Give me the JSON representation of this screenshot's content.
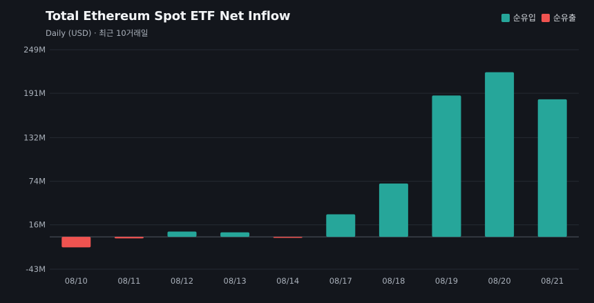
{
  "chart_data": {
    "type": "bar",
    "title": "Total Ethereum Spot ETF Net Inflow",
    "subtitle": "Daily (USD) · 최근 10거래일",
    "categories": [
      "08/10",
      "08/11",
      "08/12",
      "08/13",
      "08/14",
      "08/17",
      "08/18",
      "08/19",
      "08/20",
      "08/21"
    ],
    "values": [
      -14,
      -2,
      7,
      6,
      -1,
      30,
      71,
      188,
      219,
      183
    ],
    "value_unit": "M USD",
    "ylim": [
      -43,
      249
    ],
    "yticks": [
      249,
      191,
      132,
      74,
      16,
      -43
    ],
    "ytick_labels": [
      "249M",
      "191M",
      "132M",
      "74M",
      "16M",
      "-43M"
    ],
    "legend": [
      {
        "label": "순유입",
        "color": "#26a69a"
      },
      {
        "label": "순유출",
        "color": "#ef5350"
      }
    ],
    "legend_position": "top-right",
    "grid": true,
    "colors": {
      "positive": "#26a69a",
      "negative": "#ef5350",
      "background": "#13161c",
      "grid": "#262b33",
      "zero_line": "#4a515b"
    }
  }
}
